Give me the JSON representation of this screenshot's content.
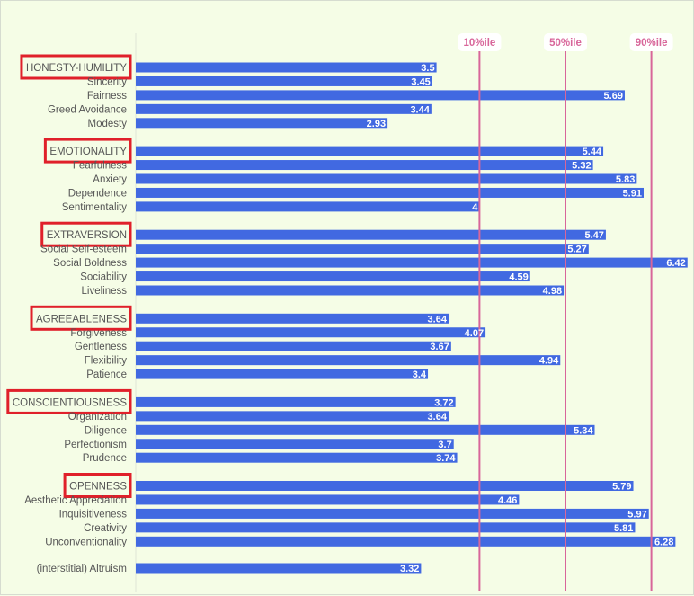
{
  "chart_data": {
    "type": "bar",
    "orientation": "horizontal",
    "title": "",
    "xlabel": "",
    "ylabel": "",
    "xlim": [
      0,
      7
    ],
    "grid": false,
    "bar_color": "#4169e1",
    "reference_color": "#d8669a",
    "highlight_color": "#e0202a",
    "reference_lines": [
      {
        "label": "10%ile",
        "value": 4.0
      },
      {
        "label": "50%ile",
        "value": 5.0
      },
      {
        "label": "90%ile",
        "value": 6.0
      }
    ],
    "rows": [
      {
        "label": "HONESTY-HUMILITY",
        "value": 3.5,
        "display": "3.5",
        "group": true
      },
      {
        "label": "Sincerity",
        "value": 3.45,
        "display": "3.45",
        "group": false
      },
      {
        "label": "Fairness",
        "value": 5.69,
        "display": "5.69",
        "group": false
      },
      {
        "label": "Greed Avoidance",
        "value": 3.44,
        "display": "3.44",
        "group": false
      },
      {
        "label": "Modesty",
        "value": 2.93,
        "display": "2.93",
        "group": false
      },
      {
        "label": "EMOTIONALITY",
        "value": 5.44,
        "display": "5.44",
        "group": true
      },
      {
        "label": "Fearfulness",
        "value": 5.32,
        "display": "5.32",
        "group": false
      },
      {
        "label": "Anxiety",
        "value": 5.83,
        "display": "5.83",
        "group": false
      },
      {
        "label": "Dependence",
        "value": 5.91,
        "display": "5.91",
        "group": false
      },
      {
        "label": "Sentimentality",
        "value": 4.0,
        "display": "4",
        "group": false
      },
      {
        "label": "EXTRAVERSION",
        "value": 5.47,
        "display": "5.47",
        "group": true
      },
      {
        "label": "Social Self-esteem",
        "value": 5.27,
        "display": "5.27",
        "group": false
      },
      {
        "label": "Social Boldness",
        "value": 6.42,
        "display": "6.42",
        "group": false
      },
      {
        "label": "Sociability",
        "value": 4.59,
        "display": "4.59",
        "group": false
      },
      {
        "label": "Liveliness",
        "value": 4.98,
        "display": "4.98",
        "group": false
      },
      {
        "label": "AGREEABLENESS",
        "value": 3.64,
        "display": "3.64",
        "group": true
      },
      {
        "label": "Forgiveness",
        "value": 4.07,
        "display": "4.07",
        "group": false
      },
      {
        "label": "Gentleness",
        "value": 3.67,
        "display": "3.67",
        "group": false
      },
      {
        "label": "Flexibility",
        "value": 4.94,
        "display": "4.94",
        "group": false
      },
      {
        "label": "Patience",
        "value": 3.4,
        "display": "3.4",
        "group": false
      },
      {
        "label": "CONSCIENTIOUSNESS",
        "value": 3.72,
        "display": "3.72",
        "group": true
      },
      {
        "label": "Organization",
        "value": 3.64,
        "display": "3.64",
        "group": false
      },
      {
        "label": "Diligence",
        "value": 5.34,
        "display": "5.34",
        "group": false
      },
      {
        "label": "Perfectionism",
        "value": 3.7,
        "display": "3.7",
        "group": false
      },
      {
        "label": "Prudence",
        "value": 3.74,
        "display": "3.74",
        "group": false
      },
      {
        "label": "OPENNESS",
        "value": 5.79,
        "display": "5.79",
        "group": true
      },
      {
        "label": "Aesthetic Appreciation",
        "value": 4.46,
        "display": "4.46",
        "group": false
      },
      {
        "label": "Inquisitiveness",
        "value": 5.97,
        "display": "5.97",
        "group": false
      },
      {
        "label": "Creativity",
        "value": 5.81,
        "display": "5.81",
        "group": false
      },
      {
        "label": "Unconventionality",
        "value": 6.28,
        "display": "6.28",
        "group": false
      },
      {
        "label": "(interstitial) Altruism",
        "value": 3.32,
        "display": "3.32",
        "group": false
      }
    ]
  }
}
